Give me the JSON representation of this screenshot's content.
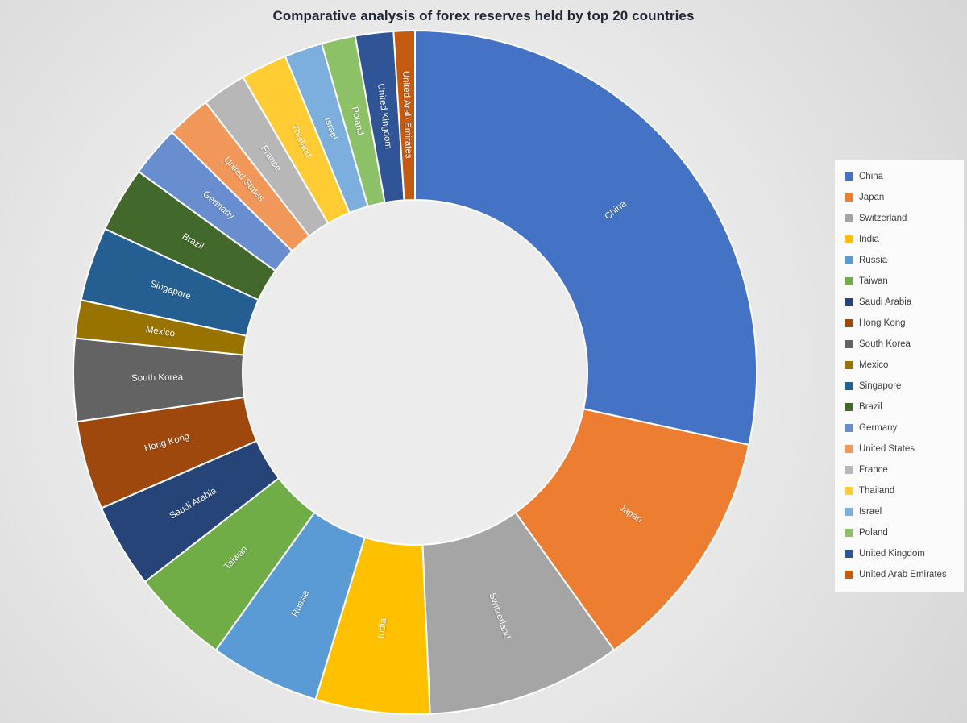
{
  "chart_data": {
    "type": "pie",
    "subtype": "doughnut",
    "title": "Comparative analysis of forex reserves held by top 20 countries",
    "unit": "percent share of total (estimated from arc angles)",
    "legend_position": "right",
    "direction": "clockwise",
    "start_angle_deg": 0,
    "hole_ratio": 0.51,
    "slice_labels_shown": "category names on slices",
    "categories": [
      "China",
      "Japan",
      "Switzerland",
      "India",
      "Russia",
      "Taiwan",
      "Saudi Arabia",
      "Hong Kong",
      "South Korea",
      "Mexico",
      "Singapore",
      "Brazil",
      "Germany",
      "United States",
      "France",
      "Thailand",
      "Israel",
      "Poland",
      "United Kingdom",
      "United Arab Emirates"
    ],
    "values": [
      28.4,
      11.7,
      9.2,
      5.4,
      5.2,
      4.6,
      4.0,
      4.2,
      3.9,
      1.8,
      3.5,
      3.1,
      2.4,
      2.1,
      2.1,
      2.2,
      1.8,
      1.6,
      1.8,
      1.0
    ],
    "colors": [
      "#4472C4",
      "#ED7D31",
      "#A5A5A5",
      "#FFC000",
      "#5B9BD5",
      "#70AD47",
      "#264478",
      "#9E480E",
      "#636363",
      "#997300",
      "#255E91",
      "#43682B",
      "#698ED0",
      "#F1975A",
      "#B7B7B7",
      "#FFCD33",
      "#7CAFDD",
      "#8CC168",
      "#2F5597",
      "#C55A11"
    ],
    "slice_border_color": "#FFFFFF",
    "slice_label_color": "#FFFFFF"
  },
  "ui_colors": {
    "background_inner": "#f1f1f1",
    "background_outer": "#d6d6d6",
    "hole_fill": "#ececec",
    "title_color": "#1f2533",
    "legend_background": "#fbfbfb",
    "legend_text": "#404040"
  }
}
